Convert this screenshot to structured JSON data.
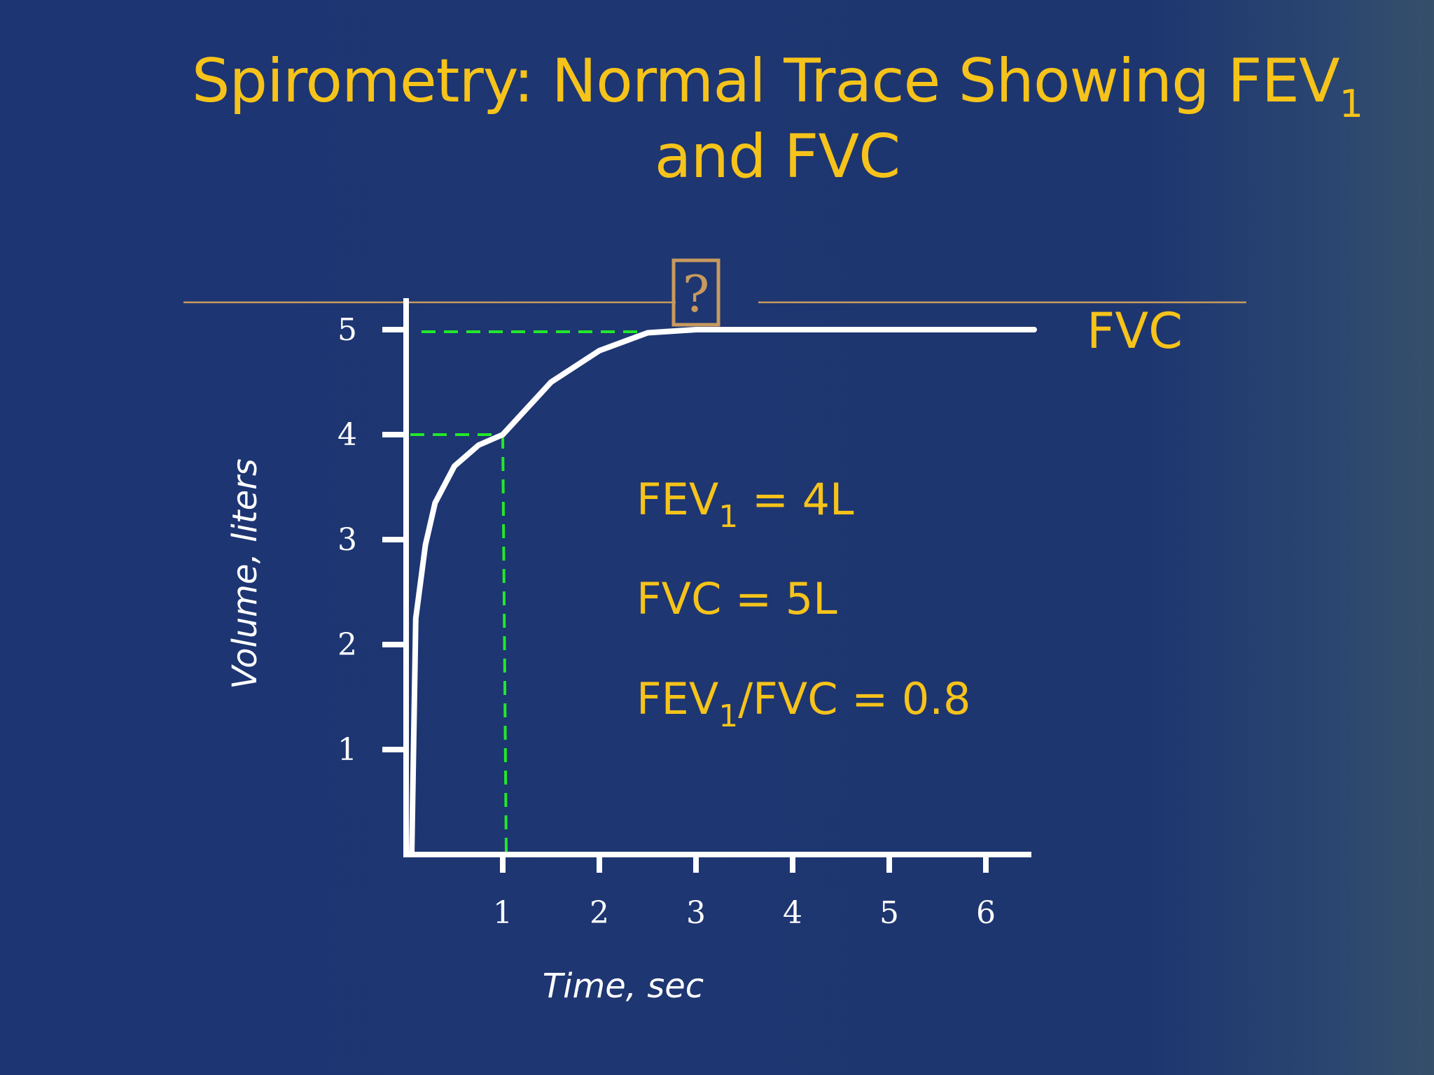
{
  "slide": {
    "title_main": "Spirometry:  Normal Trace Showing FEV",
    "title_sub": "1",
    "title_line2": "and FVC"
  },
  "colors": {
    "background": "#1e3670",
    "title": "#f6c31a",
    "curve": "#ffffff",
    "guide": "#22e82a",
    "reference_line": "#c89a5e"
  },
  "chart_data": {
    "type": "line",
    "xlabel": "Time, sec",
    "ylabel": "Volume, liters",
    "xlim": [
      0,
      6.5
    ],
    "ylim": [
      0,
      5.3
    ],
    "x_ticks": [
      "1",
      "2",
      "3",
      "4",
      "5",
      "6"
    ],
    "y_ticks": [
      "1",
      "2",
      "3",
      "4",
      "5"
    ],
    "grid": false,
    "series": [
      {
        "x": [
          0,
          0.1,
          0.2,
          0.3,
          0.5,
          0.75,
          1,
          1.5,
          2,
          2.5,
          3,
          4,
          5,
          6.5
        ],
        "y": [
          0,
          2.25,
          2.95,
          3.35,
          3.7,
          3.9,
          4.0,
          4.5,
          4.8,
          4.97,
          5.0,
          5.0,
          5.0,
          5.0
        ]
      }
    ],
    "annotations": {
      "fev1_point": {
        "x": 1,
        "y": 4
      },
      "fvc_level": 5,
      "fvc_label": "FVC",
      "marker_label": "?",
      "marker_x": 3,
      "stats": [
        {
          "main": "FEV",
          "sub": "1",
          "rest": " = 4L"
        },
        {
          "main": "FVC  = 5L",
          "sub": "",
          "rest": ""
        },
        {
          "main": "FEV",
          "sub": "1",
          "rest": "/FVC = 0.8"
        }
      ]
    }
  }
}
